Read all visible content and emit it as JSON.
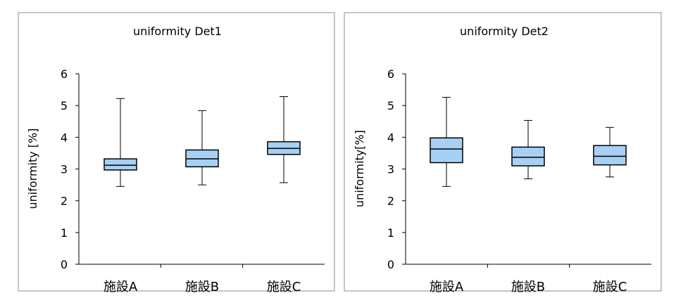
{
  "chart_data": [
    {
      "type": "box",
      "title": "uniformity Det1",
      "xlabel": "",
      "ylabel": "uniformity [%]",
      "ylim": [
        0,
        6
      ],
      "yticks": [
        0,
        1,
        2,
        3,
        4,
        5,
        6
      ],
      "grid": false,
      "categories": [
        "施設A",
        "施設B",
        "施設C"
      ],
      "series": [
        {
          "values": [
            {
              "min": 2.45,
              "q1": 2.97,
              "median": 3.12,
              "q3": 3.32,
              "max": 5.22
            },
            {
              "min": 2.5,
              "q1": 3.07,
              "median": 3.32,
              "q3": 3.6,
              "max": 4.84
            },
            {
              "min": 2.57,
              "q1": 3.46,
              "median": 3.65,
              "q3": 3.86,
              "max": 5.28
            }
          ]
        }
      ],
      "box_color": "#a8d0f5"
    },
    {
      "type": "box",
      "title": "uniformity Det2",
      "xlabel": "",
      "ylabel": "uniformity[%]",
      "ylim": [
        0,
        6
      ],
      "yticks": [
        0,
        1,
        2,
        3,
        4,
        5,
        6
      ],
      "grid": false,
      "categories": [
        "施設A",
        "施設B",
        "施設C"
      ],
      "series": [
        {
          "values": [
            {
              "min": 2.45,
              "q1": 3.2,
              "median": 3.63,
              "q3": 3.98,
              "max": 5.26
            },
            {
              "min": 2.69,
              "q1": 3.1,
              "median": 3.37,
              "q3": 3.69,
              "max": 4.53
            },
            {
              "min": 2.75,
              "q1": 3.13,
              "median": 3.4,
              "q3": 3.74,
              "max": 4.31
            }
          ]
        }
      ],
      "box_color": "#a8d0f5"
    }
  ]
}
